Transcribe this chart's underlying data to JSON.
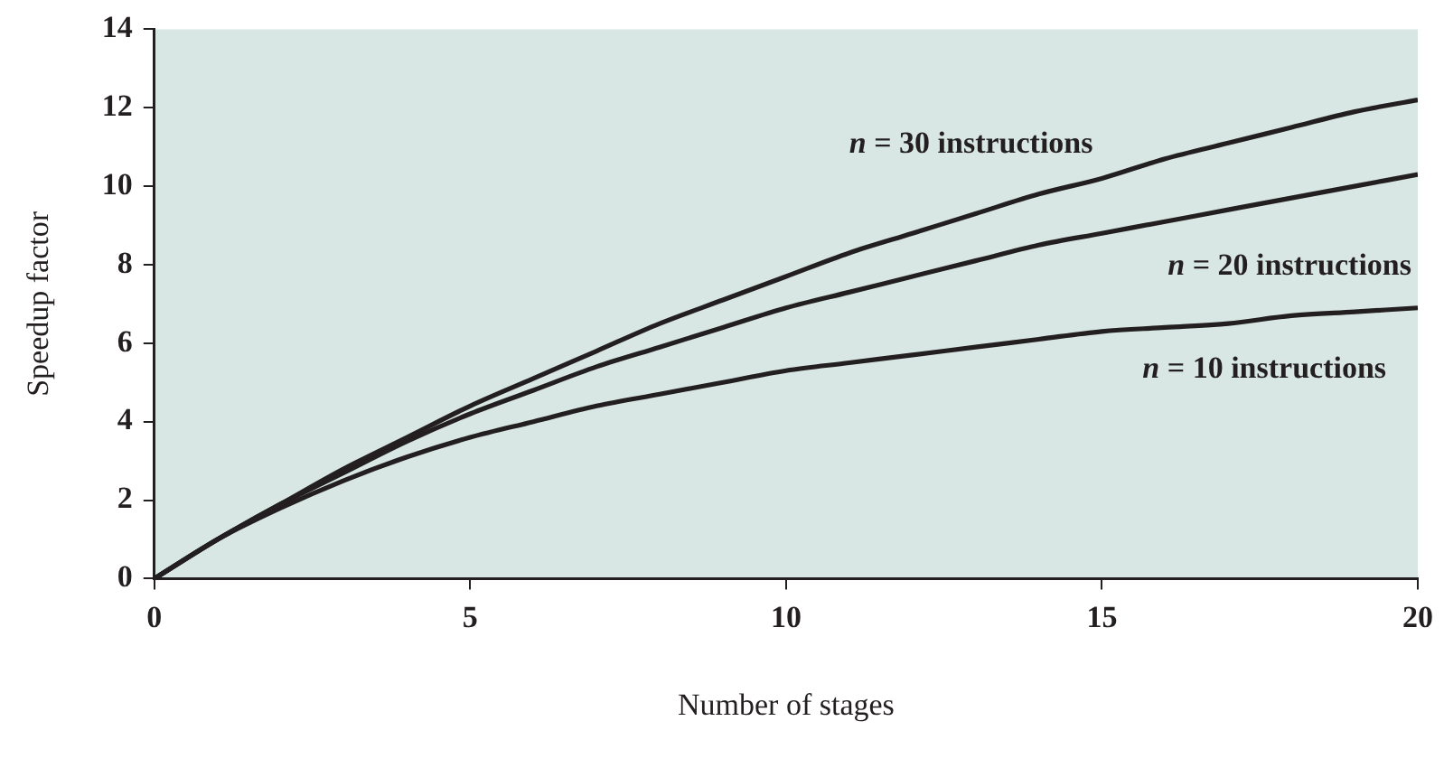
{
  "chart_data": {
    "type": "line",
    "xlabel": "Number of stages",
    "ylabel": "Speedup factor",
    "x": [
      0,
      1,
      2,
      3,
      4,
      5,
      6,
      7,
      8,
      9,
      10,
      11,
      12,
      13,
      14,
      15,
      16,
      17,
      18,
      19,
      20
    ],
    "series": [
      {
        "name": "n = 30 instructions",
        "color": "#231f20",
        "values": [
          0,
          1,
          1.9,
          2.8,
          3.6,
          4.4,
          5.1,
          5.8,
          6.5,
          7.1,
          7.7,
          8.3,
          8.8,
          9.3,
          9.8,
          10.2,
          10.7,
          11.1,
          11.5,
          11.9,
          12.2
        ]
      },
      {
        "name": "n = 20 instructions",
        "color": "#231f20",
        "values": [
          0,
          1,
          1.9,
          2.7,
          3.5,
          4.2,
          4.8,
          5.4,
          5.9,
          6.4,
          6.9,
          7.3,
          7.7,
          8.1,
          8.5,
          8.8,
          9.1,
          9.4,
          9.7,
          10,
          10.3
        ]
      },
      {
        "name": "n = 10 instructions",
        "color": "#231f20",
        "values": [
          0,
          1,
          1.8,
          2.5,
          3.1,
          3.6,
          4,
          4.4,
          4.7,
          5,
          5.3,
          5.5,
          5.7,
          5.9,
          6.1,
          6.3,
          6.4,
          6.5,
          6.7,
          6.8,
          6.9
        ]
      }
    ],
    "xlim": [
      0,
      20
    ],
    "xticks": [
      0,
      5,
      10,
      15,
      20
    ],
    "ylim": [
      0,
      14
    ],
    "yticks": [
      0,
      2,
      4,
      6,
      8,
      10,
      12,
      14
    ],
    "grid": false,
    "legend": false,
    "marker": "none",
    "line_style": "solid"
  }
}
